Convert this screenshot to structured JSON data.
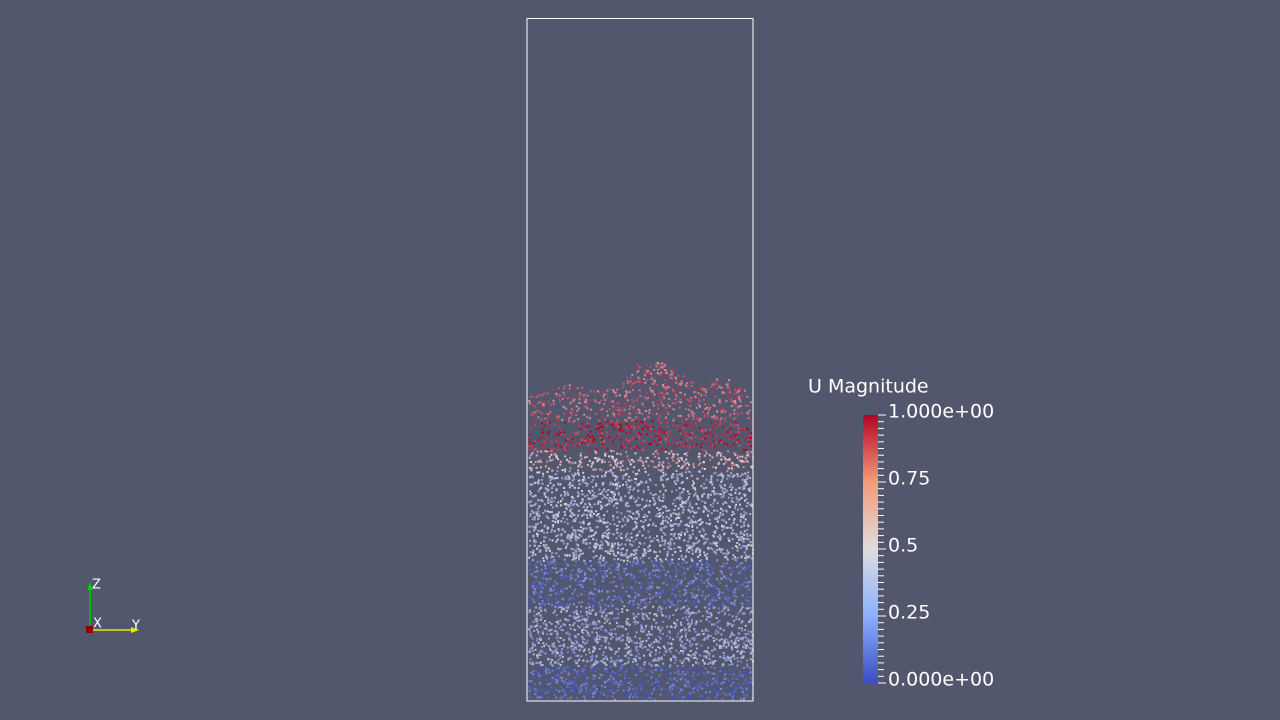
{
  "colorbar": {
    "title": "U Magnitude",
    "labels": [
      "1.000e+00",
      "0.75",
      "0.5",
      "0.25",
      "0.000e+00"
    ]
  },
  "axes": {
    "z": "Z",
    "x": "X",
    "y": "Y"
  }
}
